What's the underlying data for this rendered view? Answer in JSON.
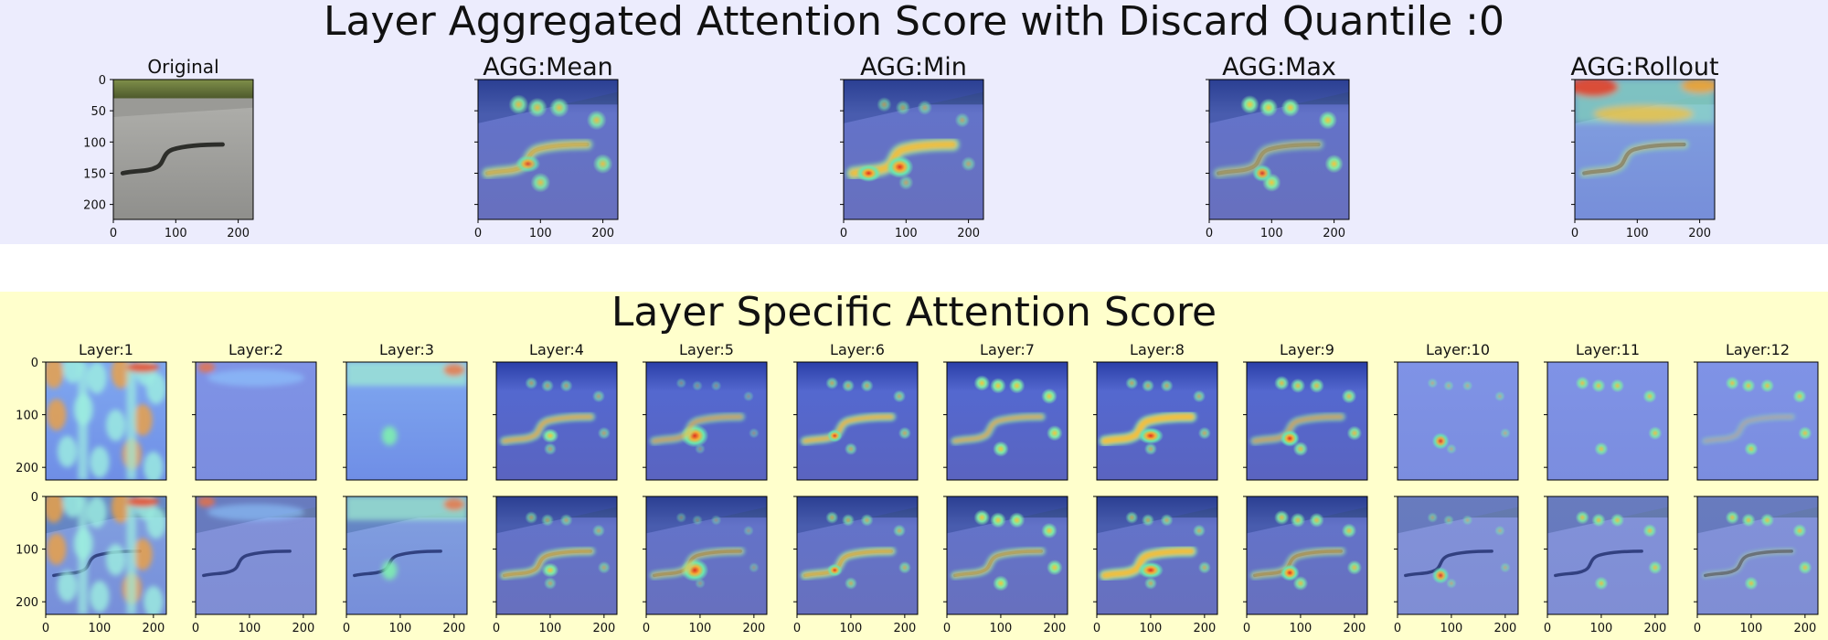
{
  "header": {
    "title": "Layer Aggregated Attention Score with Discard Quantile :0",
    "panels": [
      {
        "title": "Original",
        "kind": "photo"
      },
      {
        "title": "AGG:Mean",
        "kind": "mean"
      },
      {
        "title": "AGG:Min",
        "kind": "min"
      },
      {
        "title": "AGG:Max",
        "kind": "max"
      },
      {
        "title": "AGG:Rollout",
        "kind": "rollout"
      }
    ],
    "x_ticks": [
      "0",
      "100",
      "200"
    ],
    "y_ticks": [
      "0",
      "50",
      "100",
      "150",
      "200"
    ]
  },
  "layers": {
    "title": "Layer Specific Attention Score",
    "panels": [
      {
        "title": "Layer:1"
      },
      {
        "title": "Layer:2"
      },
      {
        "title": "Layer:3"
      },
      {
        "title": "Layer:4"
      },
      {
        "title": "Layer:5"
      },
      {
        "title": "Layer:6"
      },
      {
        "title": "Layer:7"
      },
      {
        "title": "Layer:8"
      },
      {
        "title": "Layer:9"
      },
      {
        "title": "Layer:10"
      },
      {
        "title": "Layer:11"
      },
      {
        "title": "Layer:12"
      }
    ],
    "x_ticks": [
      "0",
      "100",
      "200"
    ],
    "y_ticks": [
      "0",
      "100",
      "200"
    ]
  },
  "colors": {
    "top_band": "#ececfd",
    "bottom_band": "#ffffcc",
    "heat_low": "#5a6fe0",
    "heat_mid": "#5de8d0",
    "heat_high": "#e83a22"
  }
}
